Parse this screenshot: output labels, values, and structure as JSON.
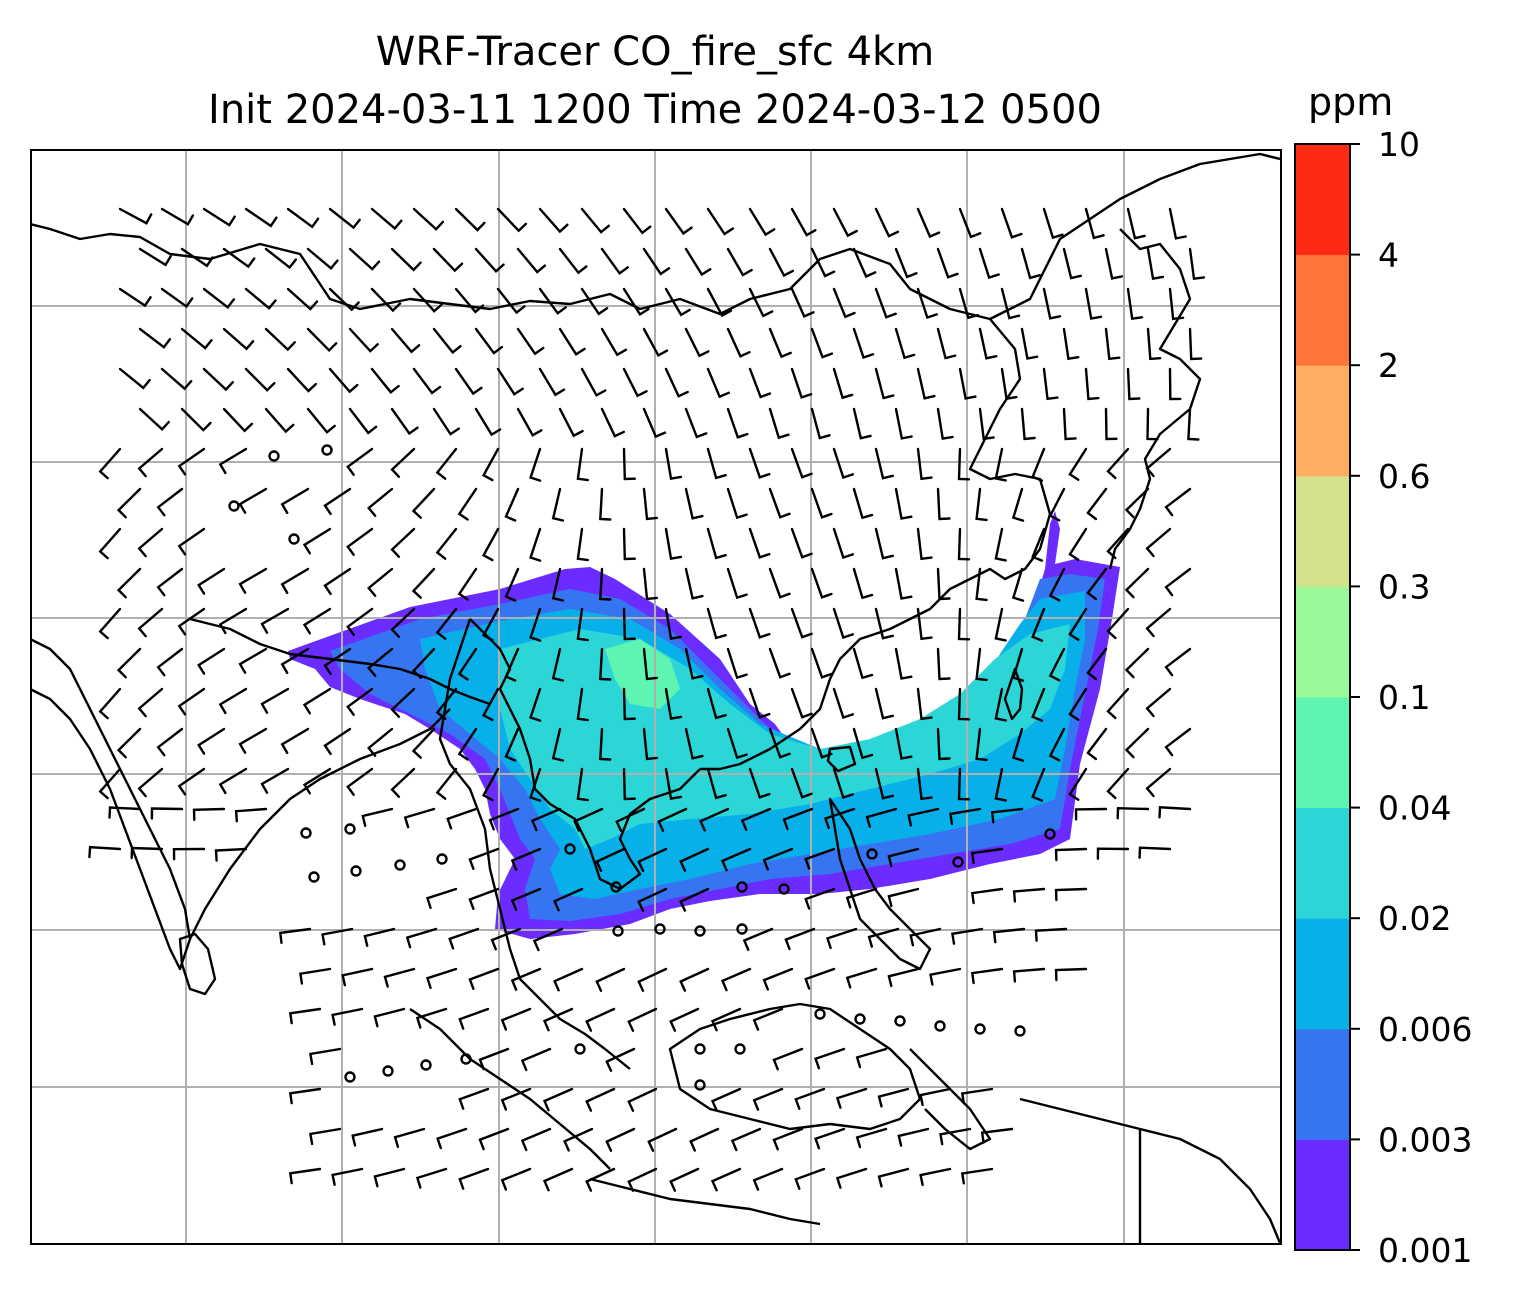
{
  "title": {
    "line1": "WRF-Tracer CO_fire_sfc 4km",
    "line2": "Init 2024-03-11 1200 Time 2024-03-12 0500"
  },
  "colorbar": {
    "unit": "ppm",
    "levels": [
      "0.001",
      "0.003",
      "0.006",
      "0.02",
      "0.04",
      "0.1",
      "0.3",
      "0.6",
      "2",
      "4",
      "10"
    ],
    "colors": [
      "#6a2cff",
      "#3575f2",
      "#08b0ea",
      "#2dd6d6",
      "#5ef5b2",
      "#98fa98",
      "#d2e18a",
      "#ffad60",
      "#ff7438",
      "#ff2a16"
    ]
  },
  "map": {
    "coastline_color": "#000000",
    "gridline_color": "#b0b0b0",
    "plume_colors": {
      "outer": "#6a2cff",
      "mid": "#3575f2",
      "inner": "#08b0ea",
      "core": "#2dd6d6",
      "peak": "#5ef5b2"
    }
  }
}
